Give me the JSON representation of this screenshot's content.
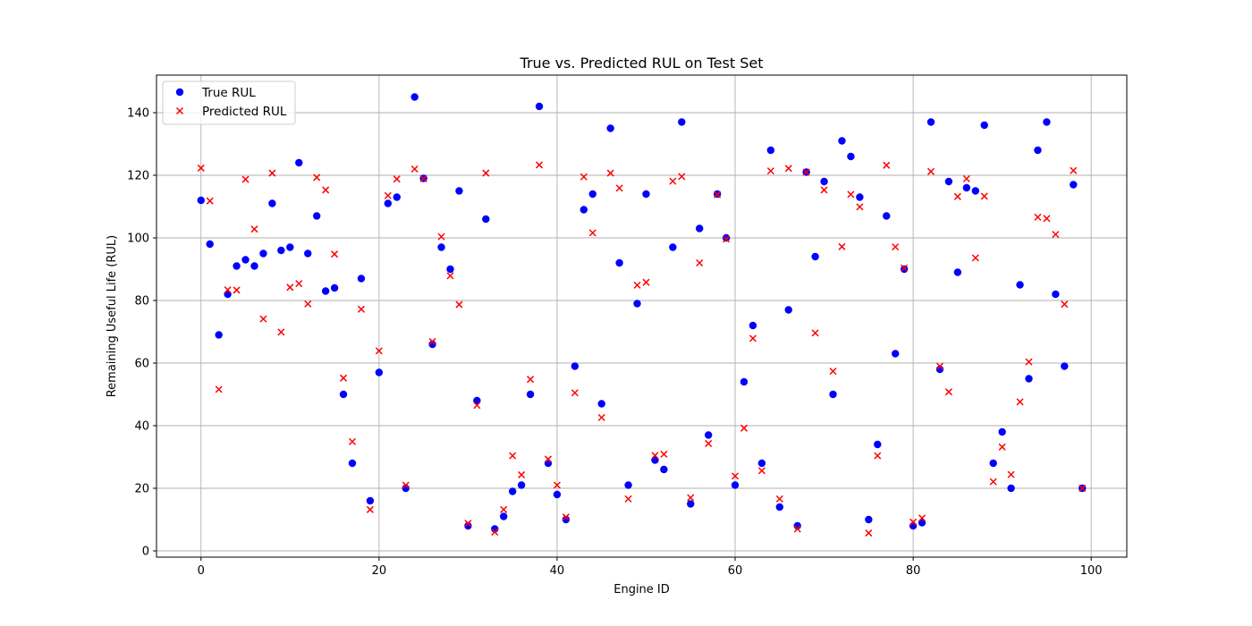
{
  "colors": {
    "true": "#0000ff",
    "pred": "#ff0000"
  },
  "chart_data": {
    "type": "scatter",
    "title": "True vs. Predicted RUL on Test Set",
    "xlabel": "Engine ID",
    "ylabel": "Remaining Useful Life (RUL)",
    "xlim": [
      -5,
      104
    ],
    "ylim": [
      -2,
      152
    ],
    "xticks": [
      0,
      20,
      40,
      60,
      80,
      100
    ],
    "yticks": [
      0,
      20,
      40,
      60,
      80,
      100,
      120,
      140
    ],
    "grid": true,
    "legend_position": "top-left",
    "series": [
      {
        "name": "True RUL",
        "marker": "circle",
        "color": "#0000ff",
        "values": [
          112,
          98,
          69,
          82,
          91,
          93,
          91,
          95,
          111,
          96,
          97,
          124,
          95,
          107,
          83,
          84,
          50,
          28,
          87,
          16,
          57,
          111,
          113,
          20,
          145,
          119,
          66,
          97,
          90,
          115,
          8,
          48,
          106,
          7,
          11,
          19,
          21,
          50,
          142,
          28,
          18,
          10,
          59,
          109,
          114,
          47,
          135,
          92,
          21,
          79,
          114,
          29,
          26,
          97,
          137,
          15,
          103,
          37,
          114,
          100,
          21,
          54,
          72,
          28,
          128,
          14,
          77,
          8,
          121,
          94,
          118,
          50,
          131,
          126,
          113,
          10,
          34,
          107,
          63,
          90,
          8,
          9,
          137,
          58,
          118,
          89,
          116,
          115,
          136,
          28,
          38,
          20,
          85,
          55,
          128,
          137,
          82,
          59,
          117,
          20
        ]
      },
      {
        "name": "Predicted RUL",
        "marker": "x",
        "color": "#ff0000",
        "values": [
          122.3,
          111.8,
          51.6,
          83.4,
          83.3,
          118.7,
          102.8,
          74.1,
          120.7,
          69.9,
          84.2,
          85.4,
          78.9,
          119.3,
          115.3,
          94.8,
          55.2,
          34.9,
          77.2,
          13.2,
          63.9,
          113.5,
          118.8,
          21.0,
          122.0,
          118.9,
          66.9,
          100.4,
          87.9,
          78.7,
          8.8,
          46.5,
          120.7,
          6.0,
          13.2,
          30.4,
          24.3,
          54.8,
          123.3,
          29.3,
          21.0,
          10.8,
          50.5,
          119.5,
          101.6,
          42.6,
          120.7,
          115.9,
          16.6,
          84.9,
          85.8,
          30.5,
          30.9,
          118.1,
          119.6,
          17.0,
          92.0,
          34.3,
          113.8,
          99.6,
          23.9,
          39.2,
          67.9,
          25.6,
          121.4,
          16.6,
          122.2,
          7.0,
          121.0,
          69.6,
          115.3,
          57.4,
          97.2,
          113.9,
          109.9,
          5.7,
          30.4,
          123.2,
          97.1,
          90.4,
          9.2,
          10.5,
          121.2,
          59.0,
          50.8,
          113.2,
          118.9,
          93.6,
          113.3,
          22.1,
          33.2,
          24.4,
          47.6,
          60.4,
          106.6,
          106.2,
          101.1,
          78.8,
          121.5,
          20.0
        ]
      }
    ]
  }
}
